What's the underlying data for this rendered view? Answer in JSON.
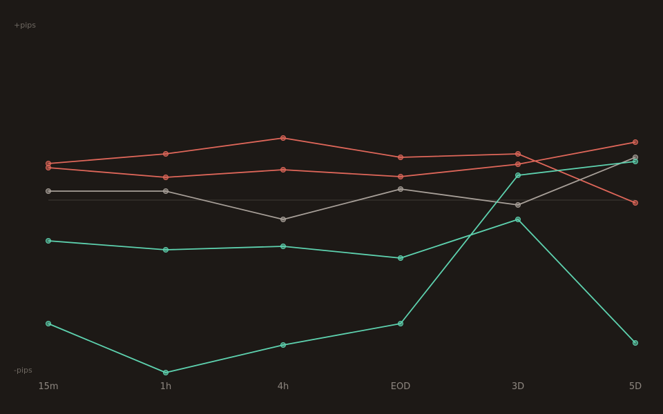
{
  "chart_data": {
    "type": "line",
    "categories": [
      "15m",
      "1h",
      "4h",
      "EOD",
      "3D",
      "5D"
    ],
    "y_top_label": "+pips",
    "y_bottom_label": "-pips",
    "ylim": [
      -100,
      100
    ],
    "zero_line": true,
    "grid": false,
    "legend": "none",
    "series": [
      {
        "color": "#e0675a",
        "values": [
          21.2,
          26.8,
          36.0,
          24.8,
          26.8,
          -1.6
        ]
      },
      {
        "color": "#e0675a",
        "values": [
          18.8,
          13.2,
          17.6,
          13.6,
          20.8,
          33.6
        ]
      },
      {
        "color": "#a8a099",
        "values": [
          5.2,
          5.2,
          -11.2,
          6.4,
          -2.8,
          24.8
        ]
      },
      {
        "color": "#5ed3b0",
        "values": [
          -23.6,
          -28.8,
          -26.8,
          -33.6,
          -11.2,
          -82.8
        ]
      },
      {
        "color": "#5ed3b0",
        "values": [
          -71.6,
          -100.0,
          -84.0,
          -71.6,
          14.4,
          22.4
        ]
      }
    ]
  }
}
